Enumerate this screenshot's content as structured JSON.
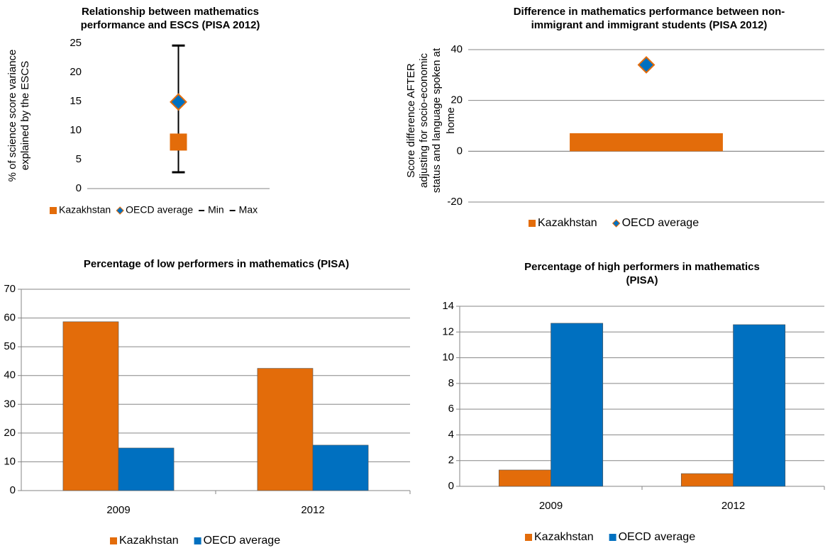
{
  "chart_data": [
    {
      "type": "scatter",
      "title": [
        "Relationship between mathematics",
        "performance and ESCS (PISA 2012)"
      ],
      "ylabel": [
        "% of science score variance",
        "explained by the ESCS"
      ],
      "ylim": [
        0,
        25
      ],
      "yticks": [
        0,
        5,
        10,
        15,
        20,
        25
      ],
      "grid": false,
      "error_bar": true,
      "series": [
        {
          "name": "Kazakhstan",
          "color": "#e36c0a",
          "marker": "square",
          "values": [
            8.0
          ]
        },
        {
          "name": "OECD average",
          "color": "#0070c0",
          "marker": "diamond",
          "values": [
            14.9
          ]
        },
        {
          "name": "Min",
          "color": "#000000",
          "marker": "dash",
          "values": [
            2.8
          ]
        },
        {
          "name": "Max",
          "color": "#000000",
          "marker": "dash",
          "values": [
            24.6
          ]
        }
      ]
    },
    {
      "type": "bar",
      "title": [
        "Difference in mathematics performance between non-",
        "immigrant and immigrant students (PISA 2012)"
      ],
      "ylabel": [
        "Score difference AFTER",
        "adjusting for socio-economic",
        "status and language spoken at",
        "home"
      ],
      "ylim": [
        -20,
        40
      ],
      "yticks": [
        -20,
        0,
        20,
        40
      ],
      "grid": true,
      "series": [
        {
          "name": "Kazakhstan",
          "color": "#e36c0a",
          "values": [
            7.1
          ]
        },
        {
          "name": "OECD average",
          "color": "#0070c0",
          "marker": "diamond",
          "values": [
            34.0
          ]
        }
      ]
    },
    {
      "type": "bar",
      "title": [
        "Percentage of low performers in mathematics (PISA)"
      ],
      "categories": [
        "2009",
        "2012"
      ],
      "ylim": [
        0,
        70
      ],
      "yticks": [
        0,
        10,
        20,
        30,
        40,
        50,
        60,
        70
      ],
      "grid": true,
      "series": [
        {
          "name": "Kazakhstan",
          "color": "#e36c0a",
          "values": [
            58.7,
            42.5
          ]
        },
        {
          "name": "OECD average",
          "color": "#0070c0",
          "values": [
            14.8,
            15.8
          ]
        }
      ]
    },
    {
      "type": "bar",
      "title": [
        "Percentage of high performers in mathematics",
        "(PISA)"
      ],
      "categories": [
        "2009",
        "2012"
      ],
      "ylim": [
        0,
        14
      ],
      "yticks": [
        0,
        2,
        4,
        6,
        8,
        10,
        12,
        14
      ],
      "grid": true,
      "series": [
        {
          "name": "Kazakhstan",
          "color": "#e36c0a",
          "values": [
            1.27,
            0.99
          ]
        },
        {
          "name": "OECD average",
          "color": "#0070c0",
          "values": [
            12.68,
            12.57
          ]
        }
      ]
    }
  ]
}
